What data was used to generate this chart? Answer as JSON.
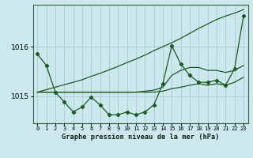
{
  "title": "Graphe pression niveau de la mer (hPa)",
  "background_color": "#cce8ee",
  "grid_color": "#aad0d8",
  "line_color": "#1a5c1a",
  "x_labels": [
    "0",
    "1",
    "2",
    "3",
    "4",
    "5",
    "6",
    "7",
    "8",
    "9",
    "10",
    "11",
    "12",
    "13",
    "14",
    "15",
    "16",
    "17",
    "18",
    "19",
    "20",
    "21",
    "22",
    "23"
  ],
  "yticks": [
    1015,
    1016
  ],
  "ylim": [
    1014.45,
    1016.85
  ],
  "xlim": [
    -0.5,
    23.5
  ],
  "series_main": [
    1015.85,
    1015.62,
    1015.08,
    1014.88,
    1014.68,
    1014.78,
    1014.98,
    1014.82,
    1014.62,
    1014.62,
    1014.68,
    1014.62,
    1014.68,
    1014.82,
    1015.25,
    1016.02,
    1015.65,
    1015.42,
    1015.28,
    1015.28,
    1015.32,
    1015.22,
    1015.55,
    1016.62
  ],
  "series_flat1": [
    1015.08,
    1015.08,
    1015.08,
    1015.08,
    1015.08,
    1015.08,
    1015.08,
    1015.08,
    1015.08,
    1015.08,
    1015.08,
    1015.08,
    1015.08,
    1015.08,
    1015.1,
    1015.15,
    1015.18,
    1015.22,
    1015.25,
    1015.22,
    1015.25,
    1015.22,
    1015.28,
    1015.38
  ],
  "series_flat2": [
    1015.08,
    1015.08,
    1015.08,
    1015.08,
    1015.08,
    1015.08,
    1015.08,
    1015.08,
    1015.08,
    1015.08,
    1015.08,
    1015.08,
    1015.1,
    1015.12,
    1015.18,
    1015.42,
    1015.52,
    1015.58,
    1015.58,
    1015.52,
    1015.52,
    1015.48,
    1015.52,
    1015.62
  ],
  "series_diag": [
    1015.08,
    1015.13,
    1015.18,
    1015.23,
    1015.28,
    1015.33,
    1015.4,
    1015.46,
    1015.53,
    1015.6,
    1015.68,
    1015.75,
    1015.83,
    1015.92,
    1016.0,
    1016.08,
    1016.17,
    1016.27,
    1016.37,
    1016.46,
    1016.55,
    1016.62,
    1016.68,
    1016.75
  ]
}
